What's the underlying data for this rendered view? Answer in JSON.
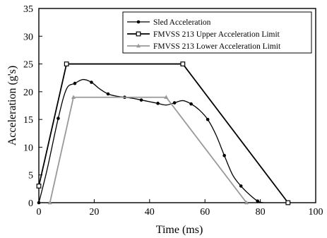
{
  "chart_data": {
    "type": "line",
    "title": "",
    "xlabel": "Time (ms)",
    "ylabel": "Acceleration (g's)",
    "xlim": [
      0,
      100
    ],
    "ylim": [
      0,
      35
    ],
    "xticks": [
      0,
      20,
      40,
      60,
      80,
      100
    ],
    "yticks": [
      0,
      5,
      10,
      15,
      20,
      25,
      30,
      35
    ],
    "grid": false,
    "legend_position": "top-right",
    "series": [
      {
        "name": "Sled Acceleration",
        "color": "#000000",
        "marker": "dot",
        "smooth": true,
        "x": [
          0,
          3,
          7,
          10,
          13,
          16,
          19,
          22,
          25,
          28,
          31,
          34,
          37,
          40,
          43,
          46,
          49,
          52,
          55,
          58,
          61,
          64,
          67,
          70,
          73,
          76,
          79,
          81
        ],
        "y": [
          0,
          6.0,
          15.2,
          20.5,
          21.5,
          22.2,
          21.7,
          20.5,
          19.6,
          19.2,
          19.0,
          18.8,
          18.5,
          18.2,
          17.9,
          17.6,
          18.0,
          18.4,
          17.8,
          16.7,
          15.0,
          12.2,
          8.5,
          5.0,
          3.0,
          1.5,
          0.3,
          0.0
        ],
        "markers_x": [
          0,
          7,
          13,
          19,
          25,
          31,
          37,
          43,
          49,
          55,
          61,
          67,
          73,
          79
        ],
        "markers_y": [
          0,
          15.2,
          21.5,
          21.7,
          19.6,
          19.0,
          18.5,
          17.9,
          18.0,
          17.8,
          15.0,
          8.5,
          3.0,
          0.3
        ]
      },
      {
        "name": "FMVSS 213 Upper Acceleration Limit",
        "color": "#000000",
        "marker": "square",
        "smooth": false,
        "x": [
          0,
          10,
          52,
          90
        ],
        "y": [
          3,
          25,
          25,
          0
        ],
        "markers_x": [
          0,
          10,
          52,
          90
        ],
        "markers_y": [
          3,
          25,
          25,
          0
        ]
      },
      {
        "name": "FMVSS 213 Lower Acceleration Limit",
        "color": "#999999",
        "marker": "triangle",
        "smooth": false,
        "x": [
          4,
          12.5,
          46,
          75
        ],
        "y": [
          0,
          19,
          19,
          0
        ],
        "markers_x": [
          4,
          12.5,
          46,
          75
        ],
        "markers_y": [
          0,
          19,
          19,
          0
        ]
      }
    ]
  }
}
